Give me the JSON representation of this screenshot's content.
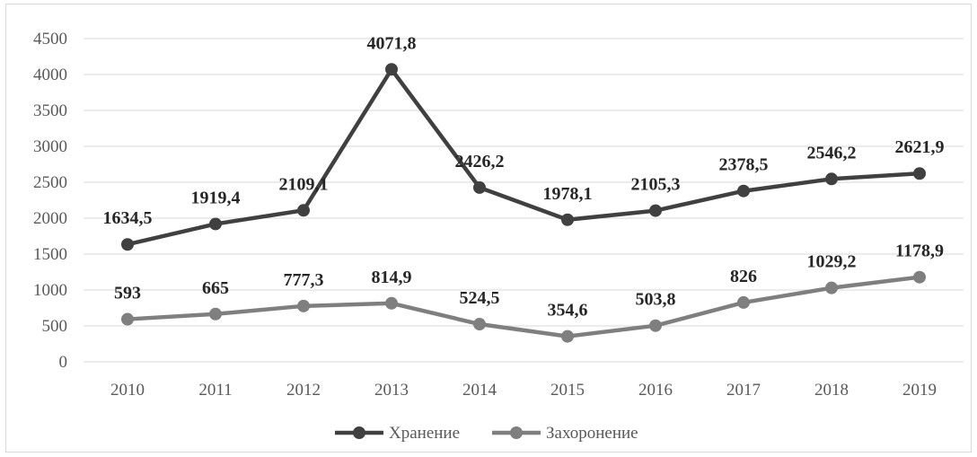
{
  "chart_data": {
    "type": "line",
    "categories": [
      "2010",
      "2011",
      "2012",
      "2013",
      "2014",
      "2015",
      "2016",
      "2017",
      "2018",
      "2019"
    ],
    "ylim": [
      0,
      4500
    ],
    "yticks": [
      0,
      500,
      1000,
      1500,
      2000,
      2500,
      3000,
      3500,
      4000,
      4500
    ],
    "grid": true,
    "legend": "bottom",
    "series": [
      {
        "name": "Хранение",
        "color": "#404040",
        "values": [
          1634.5,
          1919.4,
          2109.1,
          4071.8,
          2426.2,
          1978.1,
          2105.3,
          2378.5,
          2546.2,
          2621.9
        ],
        "labels": [
          "1634,5",
          "1919,4",
          "2109,1",
          "4071,8",
          "2426,2",
          "1978,1",
          "2105,3",
          "2378,5",
          "2546,2",
          "2621,9"
        ]
      },
      {
        "name": "Захоронение",
        "color": "#7f7f7f",
        "values": [
          593,
          665,
          777.3,
          814.9,
          524.5,
          354.6,
          503.8,
          826,
          1029.2,
          1178.9
        ],
        "labels": [
          "593",
          "665",
          "777,3",
          "814,9",
          "524,5",
          "354,6",
          "503,8",
          "826",
          "1029,2",
          "1178,9"
        ]
      }
    ]
  }
}
